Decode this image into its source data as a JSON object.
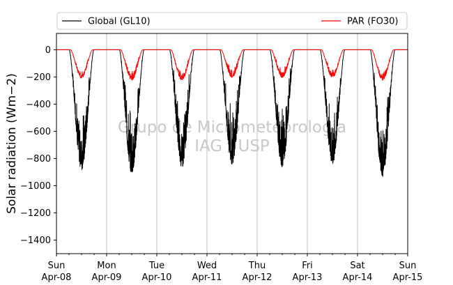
{
  "chart_data": {
    "type": "line",
    "ylabel": "Solar radiation (Wm−2)",
    "ylim": [
      -1500,
      120
    ],
    "yticks": [
      0,
      -200,
      -400,
      -600,
      -800,
      -1000,
      -1200,
      -1400
    ],
    "xlim": [
      "2018-04-08",
      "2018-04-15"
    ],
    "xticks": [
      {
        "day": "Sun",
        "date": "Apr-08"
      },
      {
        "day": "Mon",
        "date": "Apr-09"
      },
      {
        "day": "Tue",
        "date": "Apr-10"
      },
      {
        "day": "Wed",
        "date": "Apr-11"
      },
      {
        "day": "Thu",
        "date": "Apr-12"
      },
      {
        "day": "Fri",
        "date": "Apr-13"
      },
      {
        "day": "Sat",
        "date": "Apr-14"
      },
      {
        "day": "Sun",
        "date": "Apr-15"
      }
    ],
    "grid": "vertical",
    "legend_position": "top",
    "watermark": [
      "Grupo de Micrometeorologia",
      "IAG / USP"
    ],
    "series": [
      {
        "name": "Global (GL10)",
        "color": "#000000",
        "daily_minima": [
          {
            "date": "2018-04-08",
            "time": "12:00",
            "value": -885
          },
          {
            "date": "2018-04-09",
            "time": "12:00",
            "value": -910
          },
          {
            "date": "2018-04-10",
            "time": "12:00",
            "value": -865
          },
          {
            "date": "2018-04-11",
            "time": "12:00",
            "value": -845
          },
          {
            "date": "2018-04-12",
            "time": "12:00",
            "value": -865
          },
          {
            "date": "2018-04-13",
            "time": "12:00",
            "value": -840
          },
          {
            "date": "2018-04-14",
            "time": "12:00",
            "value": -940
          }
        ]
      },
      {
        "name": "PAR (FO30)",
        "color": "#ff0000",
        "daily_minima": [
          {
            "date": "2018-04-08",
            "time": "12:00",
            "value": -210
          },
          {
            "date": "2018-04-09",
            "time": "12:00",
            "value": -225
          },
          {
            "date": "2018-04-10",
            "time": "12:00",
            "value": -225
          },
          {
            "date": "2018-04-11",
            "time": "12:00",
            "value": -205
          },
          {
            "date": "2018-04-12",
            "time": "12:00",
            "value": -205
          },
          {
            "date": "2018-04-13",
            "time": "12:00",
            "value": -205
          },
          {
            "date": "2018-04-14",
            "time": "12:00",
            "value": -225
          }
        ]
      }
    ]
  }
}
